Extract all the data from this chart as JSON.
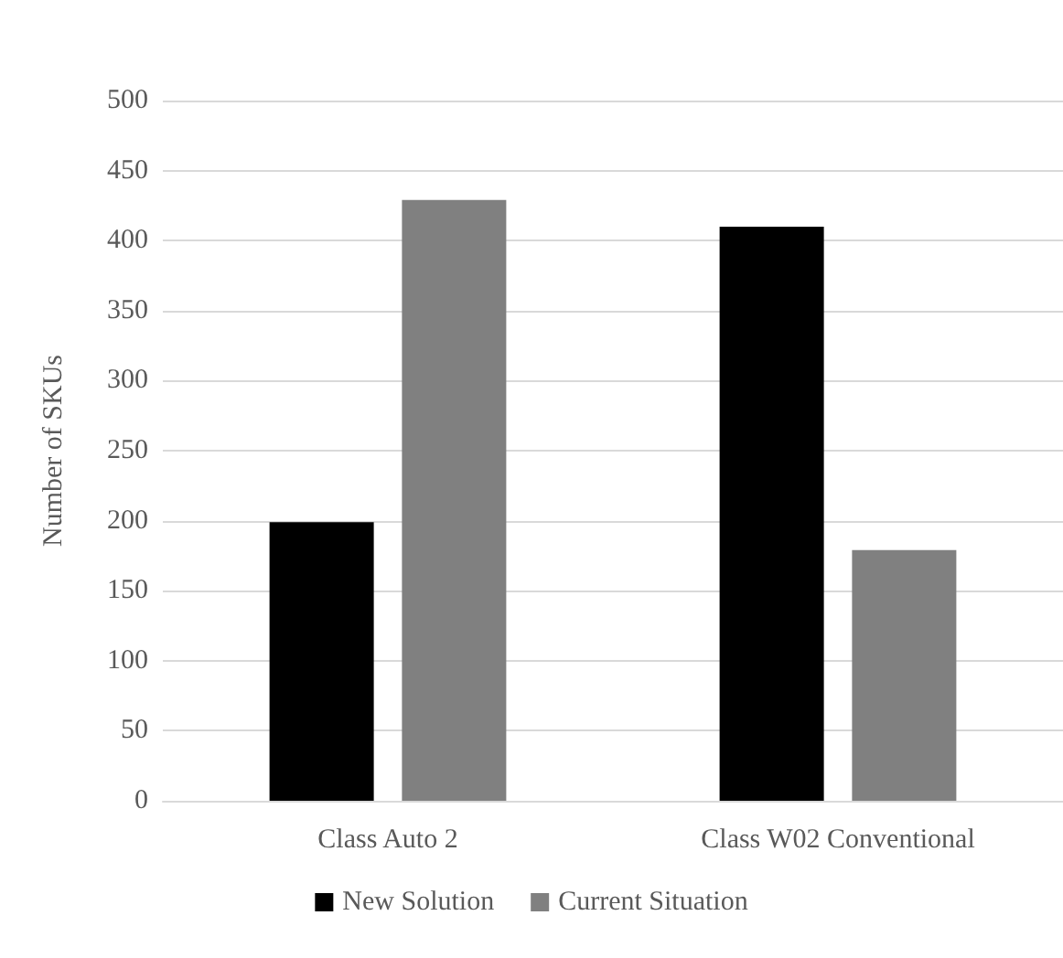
{
  "chart_data": {
    "type": "bar",
    "ylabel": "Number of SKUs",
    "categories": [
      "Class Auto 2",
      "Class W02 Conventional"
    ],
    "series": [
      {
        "name": "New Solution",
        "color": "#000000",
        "values": [
          199,
          410
        ]
      },
      {
        "name": "Current Situation",
        "color": "#808080",
        "values": [
          429,
          179
        ]
      }
    ],
    "ylim": [
      0,
      500
    ],
    "yticks": [
      0,
      50,
      100,
      150,
      200,
      250,
      300,
      350,
      400,
      450,
      500
    ],
    "grid": "y",
    "legend": "bottom"
  }
}
